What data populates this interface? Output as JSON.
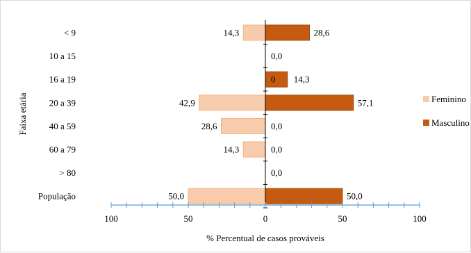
{
  "chart_data": {
    "type": "bar",
    "orientation": "horizontal-diverging",
    "categories": [
      "< 9",
      "10 a 15",
      "16 a 19",
      "20 a 39",
      "40 a 59",
      "60 a 79",
      "> 80",
      "População"
    ],
    "series": [
      {
        "name": "Feminino",
        "color": "#f8cbad",
        "values": [
          14.3,
          0.0,
          0.0,
          42.9,
          28.6,
          14.3,
          0.0,
          50.0
        ],
        "labels": [
          "14,3",
          "",
          "0",
          "42,9",
          "28,6",
          "14,3",
          "",
          "50,0"
        ]
      },
      {
        "name": "Masculino",
        "color": "#c55a11",
        "values": [
          28.6,
          0.0,
          14.3,
          57.1,
          0.0,
          0.0,
          0.0,
          50.0
        ],
        "labels": [
          "28,6",
          "0,0",
          "14,3",
          "57,1",
          "0,0",
          "0,0",
          "0,0",
          "50,0"
        ]
      }
    ],
    "xlim": [
      -100,
      100
    ],
    "x_tick_labels": [
      "100",
      "50",
      "0",
      "50",
      "100"
    ],
    "xlabel": "% Percentual de casos prováveis",
    "ylabel": "Faixa etária",
    "grid": false,
    "legend_position": "right",
    "axis_color": "#5b9bd5"
  }
}
